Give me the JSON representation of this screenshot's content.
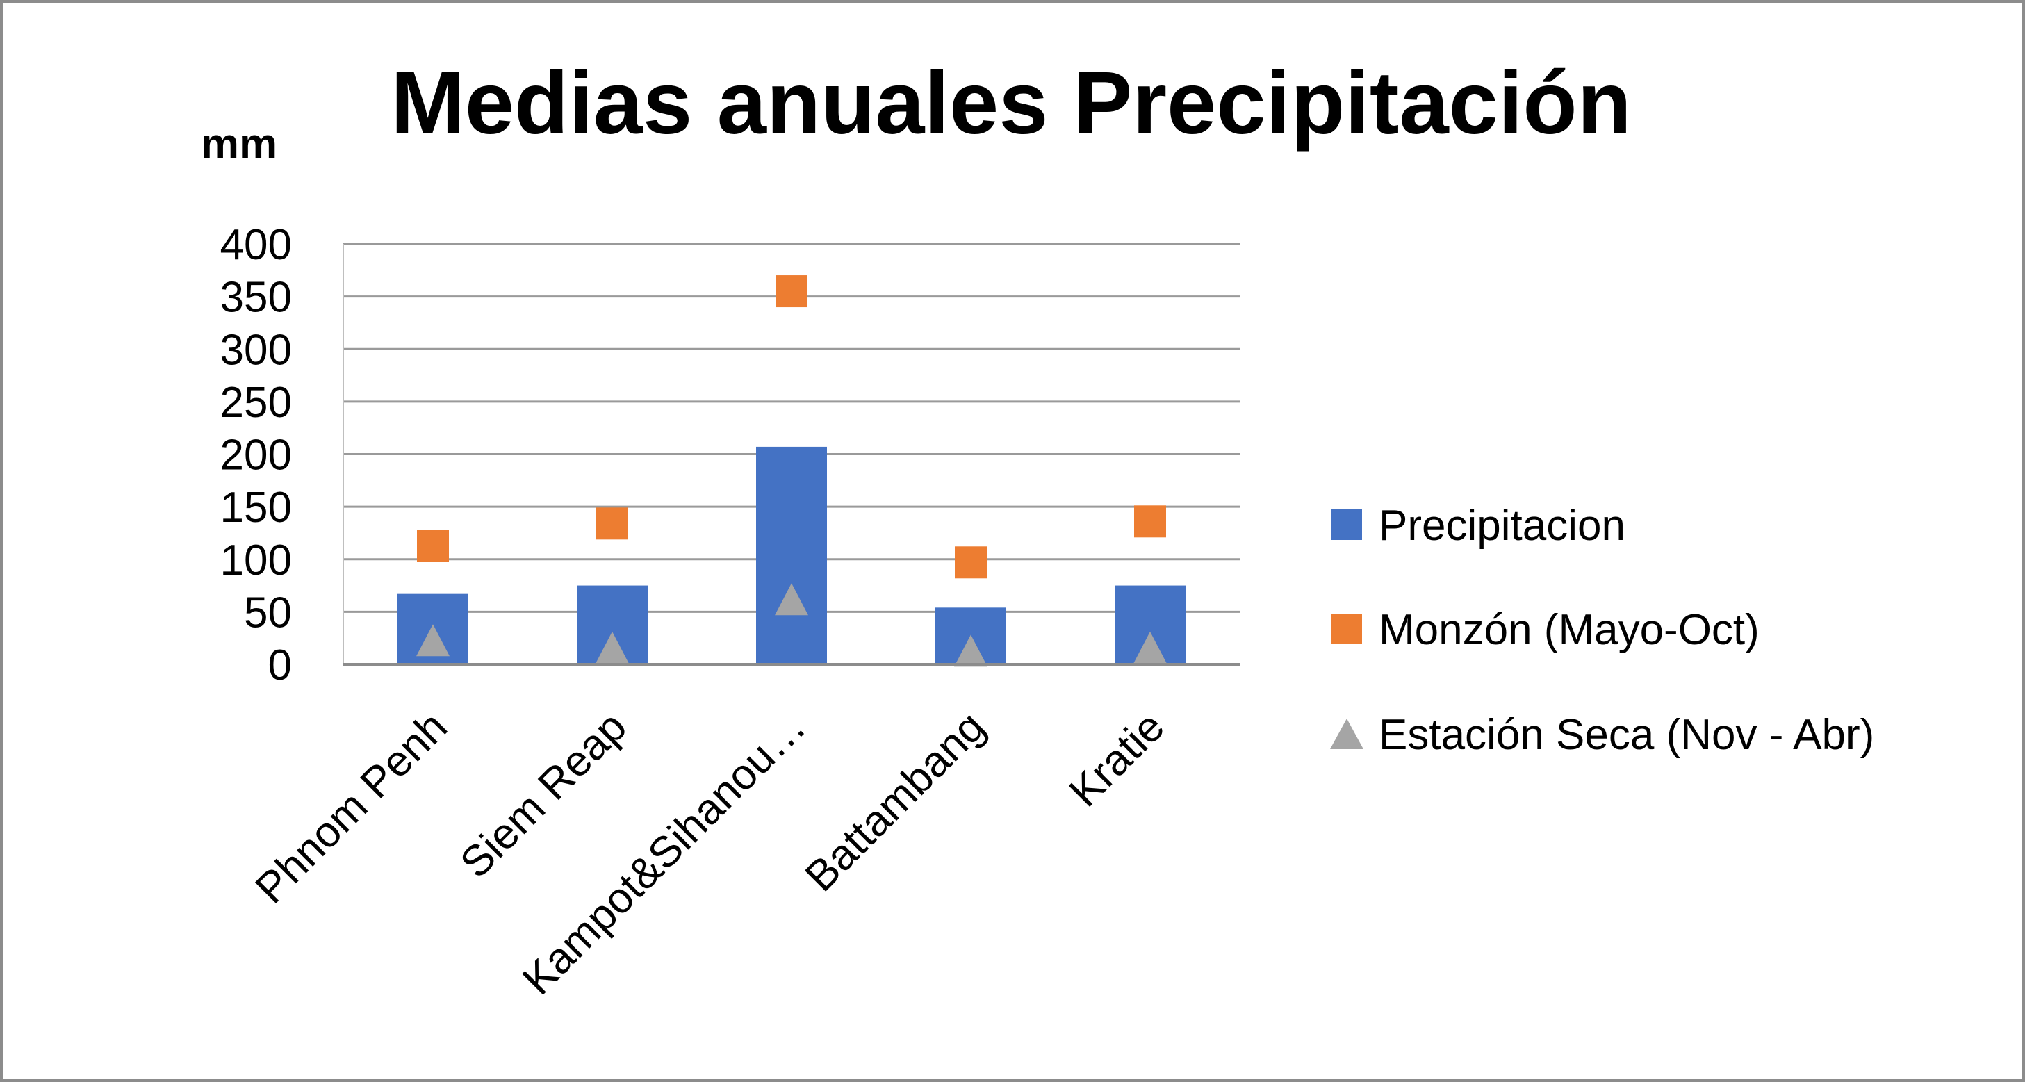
{
  "chart_data": {
    "type": "bar",
    "title": "Medias anuales Precipitación",
    "ylabel": "mm",
    "xlabel": "",
    "ylim": [
      0,
      400
    ],
    "yticks": [
      "400",
      "350",
      "300",
      "250",
      "200",
      "150",
      "100",
      "50",
      "0"
    ],
    "categories": [
      "Phnom Penh",
      "Siem Reap",
      "Kampot&Sihanou…",
      "Battambang",
      "Kratie"
    ],
    "grid": true,
    "legend_position": "right",
    "series": [
      {
        "name": "Precipitacion",
        "mark": "bar",
        "color": "#4472C4",
        "values": [
          67,
          75,
          207,
          54,
          75
        ]
      },
      {
        "name": "Monzón (Mayo-Oct)",
        "mark": "square",
        "color": "#ED7D31",
        "values": [
          113,
          134,
          355,
          97,
          136
        ]
      },
      {
        "name": "Estación Seca (Nov - Abr)",
        "mark": "triangle",
        "color": "#A5A5A5",
        "values": [
          21,
          14,
          60,
          11,
          14
        ]
      }
    ]
  }
}
